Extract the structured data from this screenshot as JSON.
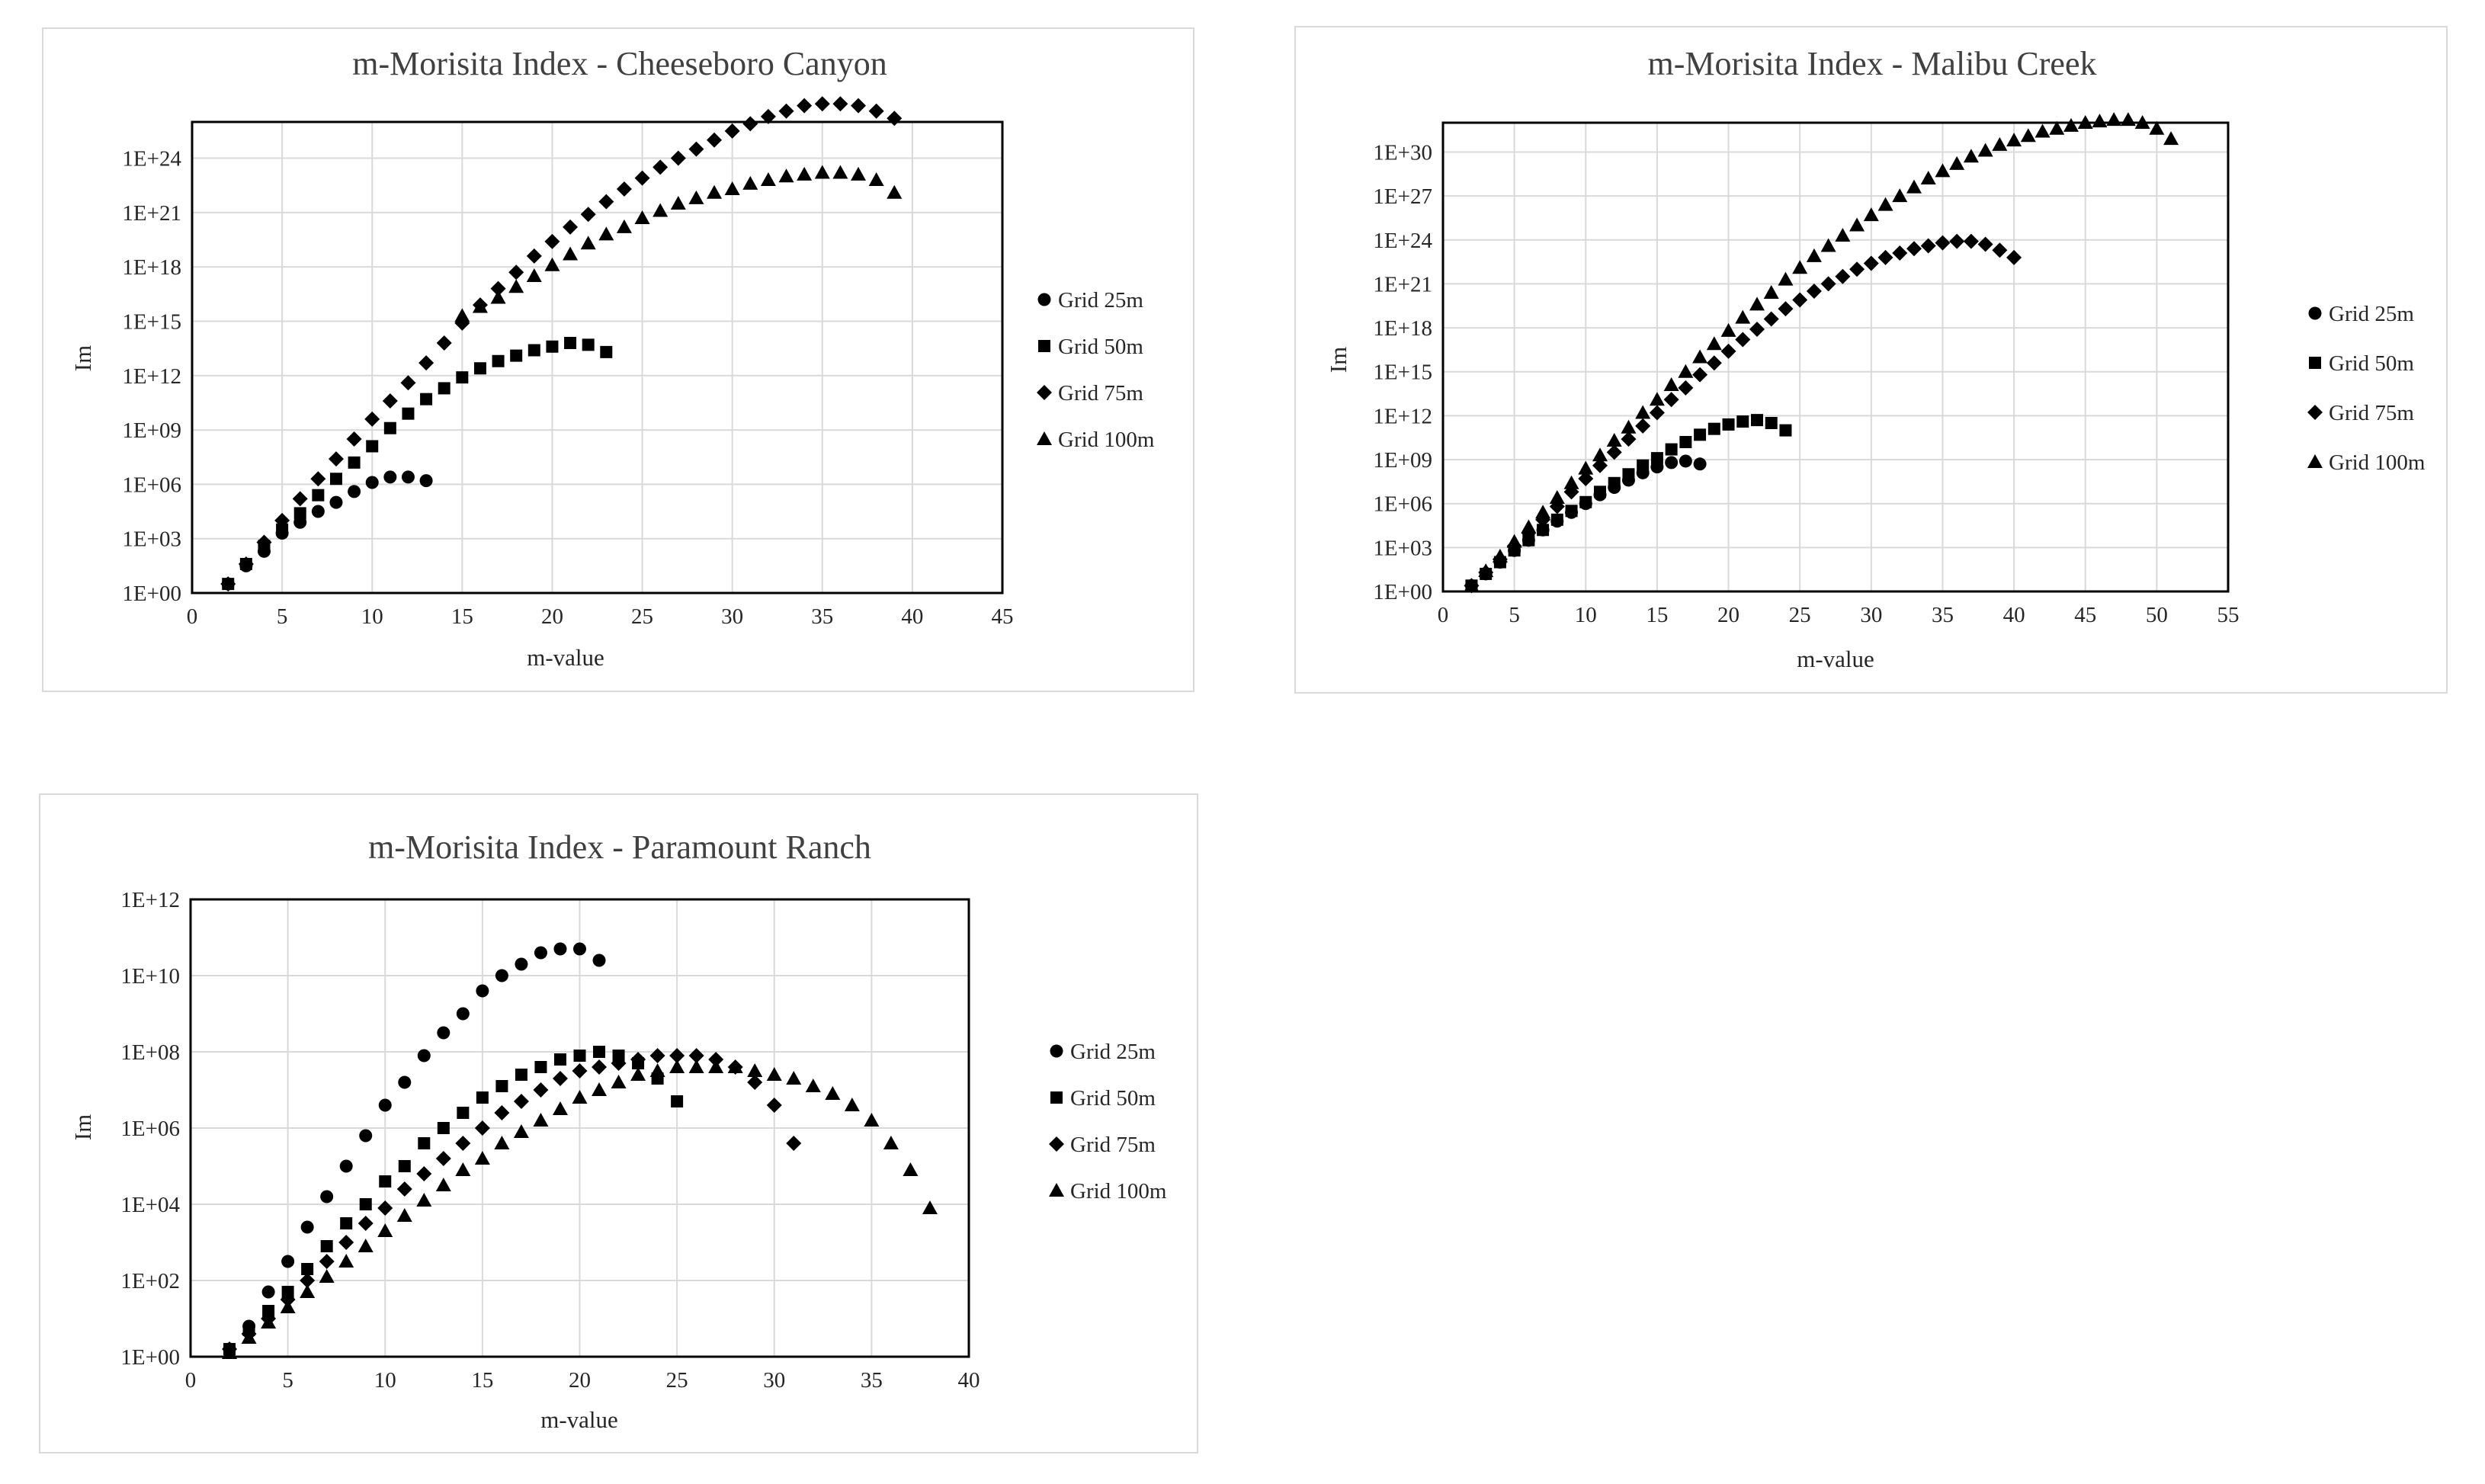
{
  "chart_data": [
    {
      "type": "scatter",
      "title": "m-Morisita Index - Cheeseboro Canyon",
      "xlabel": "m-value",
      "ylabel": "Im",
      "yscale": "log",
      "xlim": [
        0,
        45
      ],
      "xticks": [
        0,
        5,
        10,
        15,
        20,
        25,
        30,
        35,
        40,
        45
      ],
      "xtick_labels": [
        "0",
        "5",
        "10",
        "15",
        "20",
        "25",
        "30",
        "35",
        "40",
        "45"
      ],
      "ylim_exp": [
        0,
        26
      ],
      "yticks_exp": [
        0,
        3,
        6,
        9,
        12,
        15,
        18,
        21,
        24
      ],
      "ytick_labels": [
        "1E+00",
        "1E+03",
        "1E+06",
        "1E+09",
        "1E+12",
        "1E+15",
        "1E+18",
        "1E+21",
        "1E+24"
      ],
      "grid": true,
      "legend_position": "right",
      "series": [
        {
          "name": "Grid 25m",
          "marker": "circle",
          "x": [
            2,
            3,
            4,
            5,
            6,
            7,
            8,
            9,
            10,
            11,
            12,
            13
          ],
          "log10_y": [
            0.5,
            1.5,
            2.3,
            3.3,
            3.9,
            4.5,
            5.0,
            5.6,
            6.1,
            6.4,
            6.4,
            6.2
          ]
        },
        {
          "name": "Grid 50m",
          "marker": "square",
          "x": [
            2,
            3,
            4,
            5,
            6,
            7,
            8,
            9,
            10,
            11,
            12,
            13,
            14,
            15,
            16,
            17,
            18,
            19,
            20,
            21,
            22,
            23
          ],
          "log10_y": [
            0.5,
            1.6,
            2.6,
            3.5,
            4.4,
            5.4,
            6.3,
            7.2,
            8.1,
            9.1,
            9.9,
            10.7,
            11.3,
            11.9,
            12.4,
            12.8,
            13.1,
            13.4,
            13.6,
            13.8,
            13.7,
            13.3
          ]
        },
        {
          "name": "Grid 75m",
          "marker": "diamond",
          "x": [
            2,
            3,
            4,
            5,
            6,
            7,
            8,
            9,
            10,
            11,
            12,
            13,
            14,
            15,
            16,
            17,
            18,
            19,
            20,
            21,
            22,
            23,
            24,
            25,
            26,
            27,
            28,
            29,
            30,
            31,
            32,
            33,
            34,
            35,
            36,
            37,
            38,
            39
          ],
          "log10_y": [
            0.5,
            1.6,
            2.8,
            4.0,
            5.2,
            6.3,
            7.4,
            8.5,
            9.6,
            10.6,
            11.6,
            12.7,
            13.8,
            14.9,
            15.9,
            16.8,
            17.7,
            18.6,
            19.4,
            20.2,
            20.9,
            21.6,
            22.3,
            22.9,
            23.5,
            24.0,
            24.5,
            25.0,
            25.5,
            25.9,
            26.3,
            26.6,
            26.9,
            27.0,
            27.0,
            26.9,
            26.6,
            26.2
          ]
        },
        {
          "name": "Grid 100m",
          "marker": "triangle",
          "x": [
            15,
            16,
            17,
            18,
            19,
            20,
            21,
            22,
            23,
            24,
            25,
            26,
            27,
            28,
            29,
            30,
            31,
            32,
            33,
            34,
            35,
            36,
            37,
            38,
            39
          ],
          "log10_y": [
            15.3,
            15.8,
            16.3,
            16.9,
            17.5,
            18.1,
            18.7,
            19.3,
            19.8,
            20.2,
            20.7,
            21.1,
            21.5,
            21.8,
            22.1,
            22.3,
            22.6,
            22.8,
            23.0,
            23.1,
            23.2,
            23.2,
            23.1,
            22.8,
            22.1
          ]
        }
      ]
    },
    {
      "type": "scatter",
      "title": "m-Morisita Index - Malibu Creek",
      "xlabel": "m-value",
      "ylabel": "Im",
      "yscale": "log",
      "xlim": [
        0,
        55
      ],
      "xticks": [
        0,
        5,
        10,
        15,
        20,
        25,
        30,
        35,
        40,
        45,
        50,
        55
      ],
      "xtick_labels": [
        "0",
        "5",
        "10",
        "15",
        "20",
        "25",
        "30",
        "35",
        "40",
        "45",
        "50",
        "55"
      ],
      "ylim_exp": [
        0,
        32
      ],
      "yticks_exp": [
        0,
        3,
        6,
        9,
        12,
        15,
        18,
        21,
        24,
        27,
        30
      ],
      "ytick_labels": [
        "1E+00",
        "1E+03",
        "1E+06",
        "1E+09",
        "1E+12",
        "1E+15",
        "1E+18",
        "1E+21",
        "1E+24",
        "1E+27",
        "1E+30"
      ],
      "grid": true,
      "legend_position": "right",
      "series": [
        {
          "name": "Grid 25m",
          "marker": "circle",
          "x": [
            2,
            3,
            4,
            5,
            6,
            7,
            8,
            9,
            10,
            11,
            12,
            13,
            14,
            15,
            16,
            17,
            18
          ],
          "log10_y": [
            0.4,
            1.2,
            2.0,
            2.8,
            3.5,
            4.2,
            4.8,
            5.4,
            6.0,
            6.6,
            7.1,
            7.6,
            8.1,
            8.5,
            8.8,
            8.9,
            8.7
          ]
        },
        {
          "name": "Grid 50m",
          "marker": "square",
          "x": [
            2,
            3,
            4,
            5,
            6,
            7,
            8,
            9,
            10,
            11,
            12,
            13,
            14,
            15,
            16,
            17,
            18,
            19,
            20,
            21,
            22,
            23,
            24
          ],
          "log10_y": [
            0.4,
            1.2,
            2.0,
            2.8,
            3.5,
            4.2,
            4.9,
            5.5,
            6.1,
            6.8,
            7.4,
            8.0,
            8.6,
            9.1,
            9.7,
            10.2,
            10.7,
            11.1,
            11.4,
            11.6,
            11.7,
            11.5,
            11.0
          ]
        },
        {
          "name": "Grid 75m",
          "marker": "diamond",
          "x": [
            2,
            3,
            4,
            5,
            6,
            7,
            8,
            9,
            10,
            11,
            12,
            13,
            14,
            15,
            16,
            17,
            18,
            19,
            20,
            21,
            22,
            23,
            24,
            25,
            26,
            27,
            28,
            29,
            30,
            31,
            32,
            33,
            34,
            35,
            36,
            37,
            38,
            39,
            40
          ],
          "log10_y": [
            0.4,
            1.3,
            2.2,
            3.1,
            4.0,
            4.9,
            5.8,
            6.8,
            7.7,
            8.6,
            9.5,
            10.4,
            11.3,
            12.2,
            13.1,
            13.9,
            14.8,
            15.6,
            16.4,
            17.2,
            17.9,
            18.6,
            19.3,
            19.9,
            20.5,
            21.0,
            21.5,
            22.0,
            22.4,
            22.8,
            23.1,
            23.4,
            23.6,
            23.8,
            23.9,
            23.9,
            23.7,
            23.3,
            22.8
          ]
        },
        {
          "name": "Grid 100m",
          "marker": "triangle",
          "x": [
            2,
            3,
            4,
            5,
            6,
            7,
            8,
            9,
            10,
            11,
            12,
            13,
            14,
            15,
            16,
            17,
            18,
            19,
            20,
            21,
            22,
            23,
            24,
            25,
            26,
            27,
            28,
            29,
            30,
            31,
            32,
            33,
            34,
            35,
            36,
            37,
            38,
            39,
            40,
            41,
            42,
            43,
            44,
            45,
            46,
            47,
            48,
            49,
            50,
            51
          ],
          "log10_y": [
            0.4,
            1.4,
            2.4,
            3.4,
            4.4,
            5.4,
            6.4,
            7.4,
            8.4,
            9.3,
            10.3,
            11.2,
            12.2,
            13.1,
            14.1,
            15.0,
            16.0,
            16.9,
            17.8,
            18.7,
            19.6,
            20.4,
            21.3,
            22.1,
            22.9,
            23.6,
            24.3,
            25.0,
            25.7,
            26.4,
            27.0,
            27.6,
            28.2,
            28.7,
            29.2,
            29.7,
            30.1,
            30.5,
            30.8,
            31.1,
            31.4,
            31.6,
            31.8,
            32.0,
            32.1,
            32.2,
            32.2,
            32.0,
            31.6,
            30.9
          ]
        }
      ]
    },
    {
      "type": "scatter",
      "title": "m-Morisita Index - Paramount Ranch",
      "xlabel": "m-value",
      "ylabel": "Im",
      "yscale": "log",
      "xlim": [
        0,
        40
      ],
      "xticks": [
        0,
        5,
        10,
        15,
        20,
        25,
        30,
        35,
        40
      ],
      "xtick_labels": [
        "0",
        "5",
        "10",
        "15",
        "20",
        "25",
        "30",
        "35",
        "40"
      ],
      "ylim_exp": [
        0,
        12
      ],
      "yticks_exp": [
        0,
        2,
        4,
        6,
        8,
        10,
        12
      ],
      "ytick_labels": [
        "1E+00",
        "1E+02",
        "1E+04",
        "1E+06",
        "1E+08",
        "1E+10",
        "1E+12"
      ],
      "grid": true,
      "legend_position": "right",
      "series": [
        {
          "name": "Grid 25m",
          "marker": "circle",
          "x": [
            2,
            3,
            4,
            5,
            6,
            7,
            8,
            9,
            10,
            11,
            12,
            13,
            14,
            15,
            16,
            17,
            18,
            19,
            20,
            21
          ],
          "log10_y": [
            0.2,
            0.8,
            1.7,
            2.5,
            3.4,
            4.2,
            5.0,
            5.8,
            6.6,
            7.2,
            7.9,
            8.5,
            9.0,
            9.6,
            10.0,
            10.3,
            10.6,
            10.7,
            10.7,
            10.4
          ]
        },
        {
          "name": "Grid 50m",
          "marker": "square",
          "x": [
            2,
            3,
            4,
            5,
            6,
            7,
            8,
            9,
            10,
            11,
            12,
            13,
            14,
            15,
            16,
            17,
            18,
            19,
            20,
            21,
            22,
            23,
            24,
            25
          ],
          "log10_y": [
            0.2,
            0.7,
            1.2,
            1.7,
            2.3,
            2.9,
            3.5,
            4.0,
            4.6,
            5.0,
            5.6,
            6.0,
            6.4,
            6.8,
            7.1,
            7.4,
            7.6,
            7.8,
            7.9,
            8.0,
            7.9,
            7.7,
            7.3,
            6.7
          ]
        },
        {
          "name": "Grid 75m",
          "marker": "diamond",
          "x": [
            2,
            3,
            4,
            5,
            6,
            7,
            8,
            9,
            10,
            11,
            12,
            13,
            14,
            15,
            16,
            17,
            18,
            19,
            20,
            21,
            22,
            23,
            24,
            25,
            26,
            27,
            28,
            29,
            30,
            31
          ],
          "log10_y": [
            0.2,
            0.6,
            1.0,
            1.5,
            2.0,
            2.5,
            3.0,
            3.5,
            3.9,
            4.4,
            4.8,
            5.2,
            5.6,
            6.0,
            6.4,
            6.7,
            7.0,
            7.3,
            7.5,
            7.6,
            7.7,
            7.8,
            7.9,
            7.9,
            7.9,
            7.8,
            7.6,
            7.2,
            6.6,
            5.6
          ]
        },
        {
          "name": "Grid 100m",
          "marker": "triangle",
          "x": [
            2,
            3,
            4,
            5,
            6,
            7,
            8,
            9,
            10,
            11,
            12,
            13,
            14,
            15,
            16,
            17,
            18,
            19,
            20,
            21,
            22,
            23,
            24,
            25,
            26,
            27,
            28,
            29,
            30,
            31,
            32,
            33,
            34,
            35,
            36,
            37,
            38
          ],
          "log10_y": [
            0.1,
            0.5,
            0.9,
            1.3,
            1.7,
            2.1,
            2.5,
            2.9,
            3.3,
            3.7,
            4.1,
            4.5,
            4.9,
            5.2,
            5.6,
            5.9,
            6.2,
            6.5,
            6.8,
            7.0,
            7.2,
            7.4,
            7.5,
            7.6,
            7.6,
            7.6,
            7.6,
            7.5,
            7.4,
            7.3,
            7.1,
            6.9,
            6.6,
            6.2,
            5.6,
            4.9,
            3.9
          ]
        }
      ]
    }
  ]
}
